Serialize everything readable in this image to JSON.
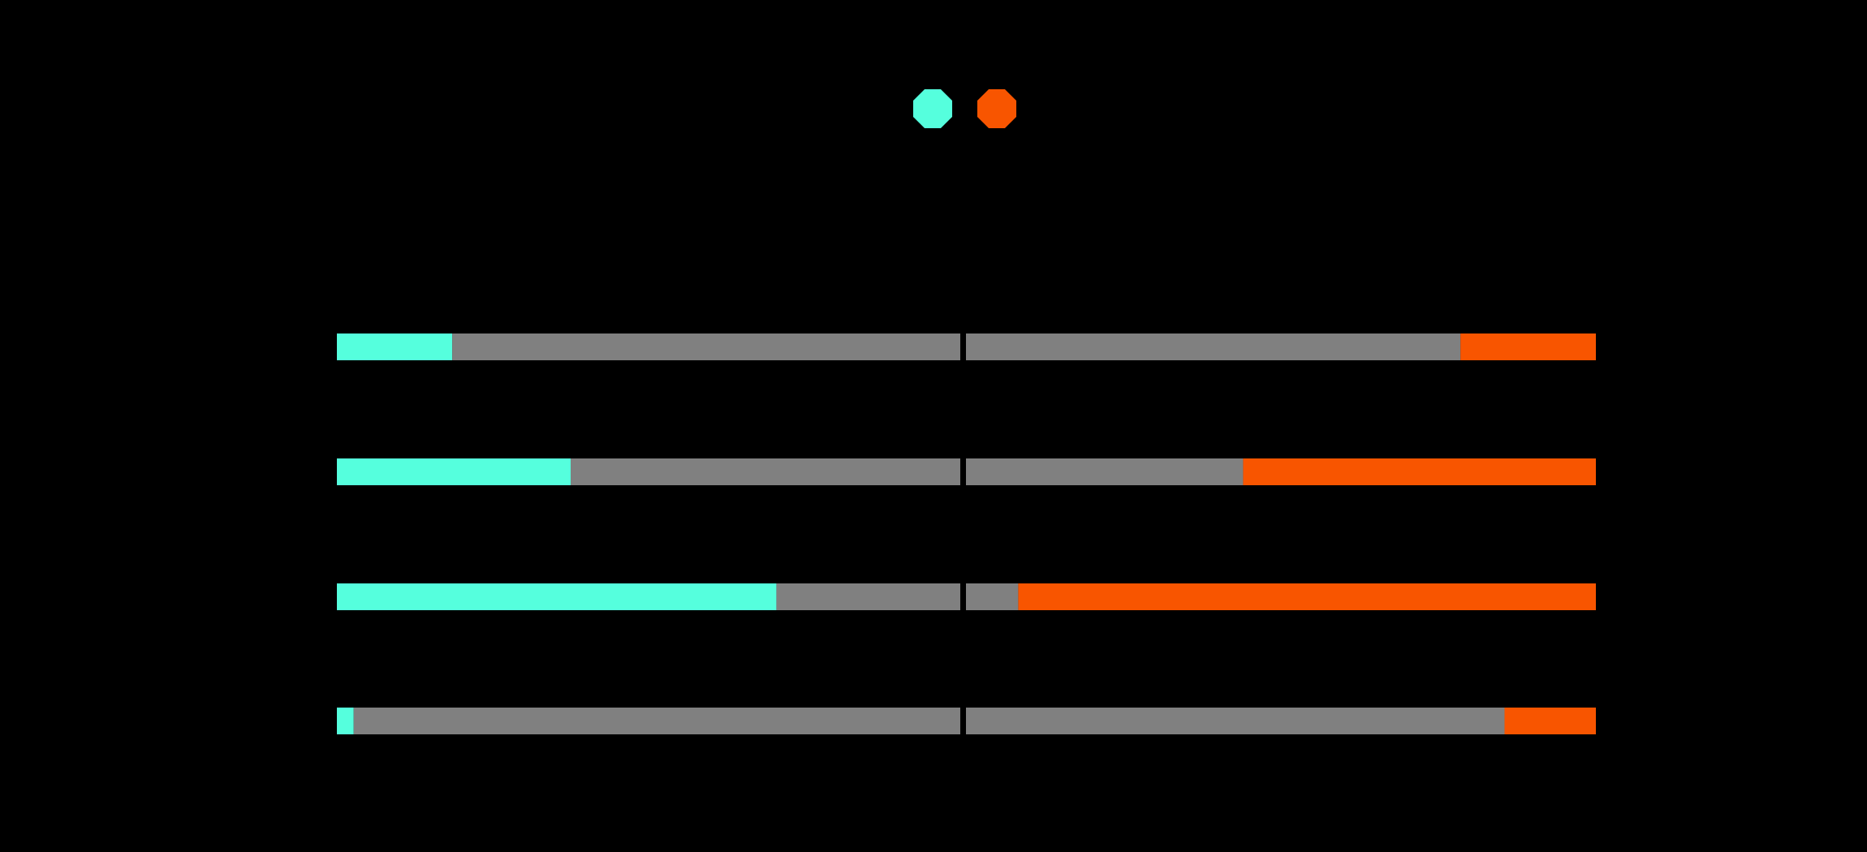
{
  "chart_data": {
    "type": "bar",
    "layout": "diverging-stacked-horizontal",
    "legend": {
      "placement": "top-center",
      "marker": "octagon",
      "entries": [
        {
          "name": "",
          "color": "#55FFDD"
        },
        {
          "name": "",
          "color": "#F85500"
        }
      ]
    },
    "colors": {
      "left": "#55FFDD",
      "right": "#F85500",
      "remainder": "#808080",
      "background": "#000000"
    },
    "xlim": [
      0,
      100
    ],
    "grid": false,
    "rows": [
      {
        "left_pct": 18.5,
        "right_pct": 21.5
      },
      {
        "left_pct": 37.5,
        "right_pct": 56.0
      },
      {
        "left_pct": 70.5,
        "right_pct": 91.7
      },
      {
        "left_pct": 2.7,
        "right_pct": 14.5
      }
    ]
  }
}
